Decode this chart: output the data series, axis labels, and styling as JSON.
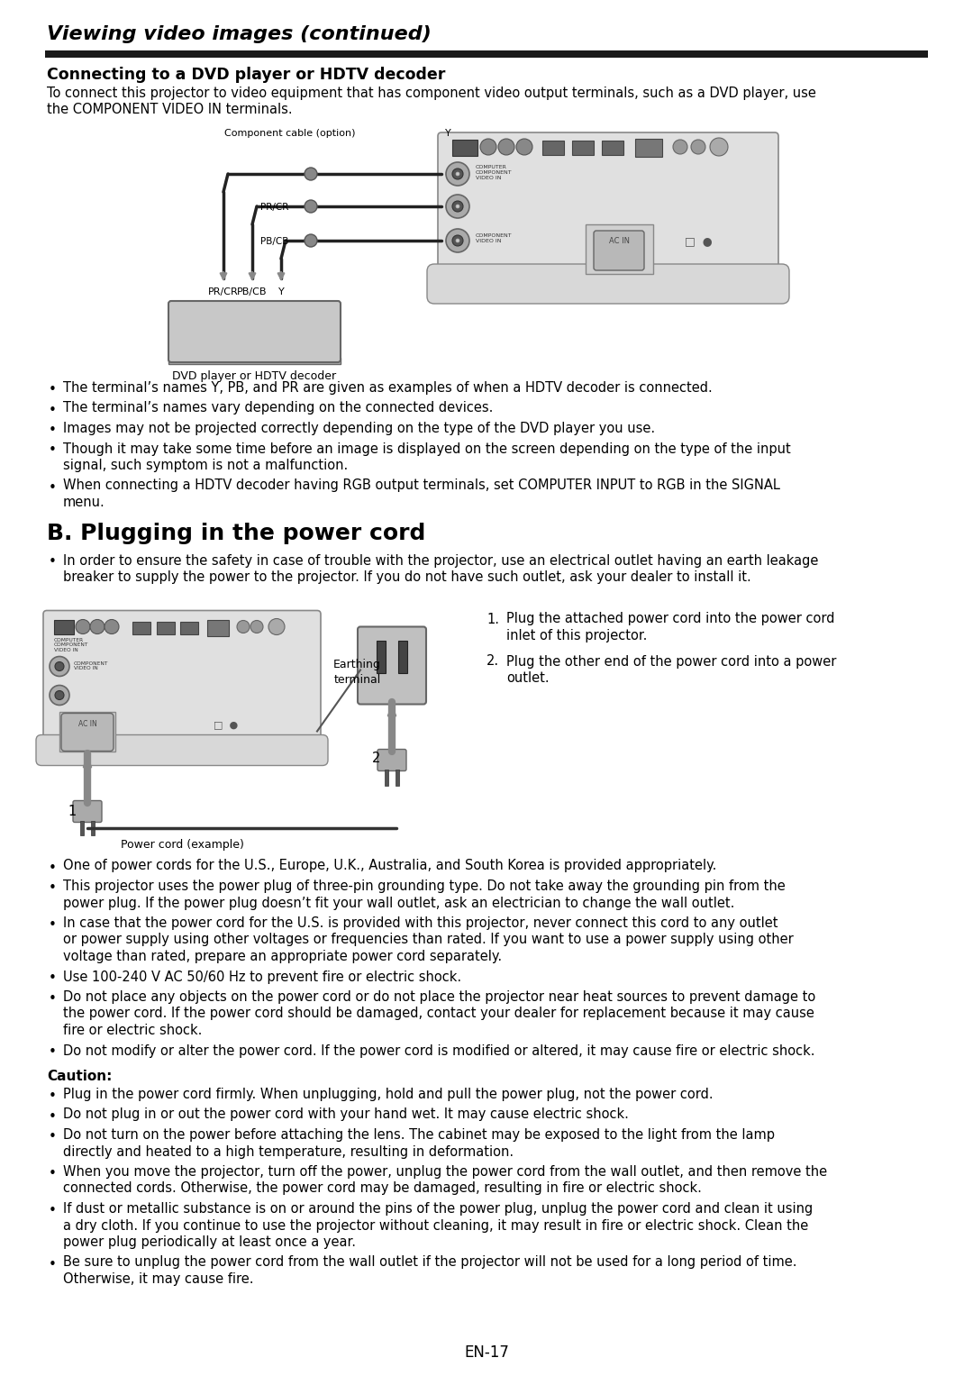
{
  "title": "Viewing video images (continued)",
  "s1_title": "Connecting to a DVD player or HDTV decoder",
  "s1_intro1": "To connect this projector to video equipment that has component video output terminals, such as a DVD player, use",
  "s1_intro2": "the COMPONENT VIDEO IN terminals.",
  "comp_cable_label": "Component cable (option)",
  "label_Y_top": "Y",
  "label_PR": "PR/CR",
  "label_PB": "PB/CB",
  "label_PRcR_side": "PR/CR",
  "label_PBcB_side": "PB/CB",
  "label_PR_bot": "PR/CR",
  "label_PB_bot": "PB/CB",
  "label_Y_bot": "Y",
  "dvd_device_label": "DVD player or HDTV decoder",
  "bullet1": "The terminal’s names Y, PB, and PR are given as examples of when a HDTV decoder is connected.",
  "bullet2": "The terminal’s names vary depending on the connected devices.",
  "bullet3": "Images may not be projected correctly depending on the type of the DVD player you use.",
  "bullet4a": "Though it may take some time before an image is displayed on the screen depending on the type of the input",
  "bullet4b": "signal, such symptom is not a malfunction.",
  "bullet5a": "When connecting a HDTV decoder having RGB output terminals, set COMPUTER INPUT to RGB in the SIGNAL",
  "bullet5b": "menu.",
  "s2_title": "B. Plugging in the power cord",
  "s2_bullet1a": "In order to ensure the safety in case of trouble with the projector, use an electrical outlet having an earth leakage",
  "s2_bullet1b": "breaker to supply the power to the projector. If you do not have such outlet, ask your dealer to install it.",
  "earthing_label1": "Earthing",
  "earthing_label2": "terminal",
  "step1_num": "1.",
  "step1a": "Plug the attached power cord into the power cord",
  "step1b": "inlet of this projector.",
  "step2_num": "2.",
  "step2a": "Plug the other end of the power cord into a power",
  "step2b": "outlet.",
  "power_cord_label": "Power cord (example)",
  "pb1": "One of power cords for the U.S., Europe, U.K., Australia, and South Korea is provided appropriately.",
  "pb2a": "This projector uses the power plug of three-pin grounding type. Do not take away the grounding pin from the",
  "pb2b": "power plug. If the power plug doesn’t fit your wall outlet, ask an electrician to change the wall outlet.",
  "pb3a": "In case that the power cord for the U.S. is provided with this projector, never connect this cord to any outlet",
  "pb3b": "or power supply using other voltages or frequencies than rated. If you want to use a power supply using other",
  "pb3c": "voltage than rated, prepare an appropriate power cord separately.",
  "pb4": "Use 100-240 V AC 50/60 Hz to prevent fire or electric shock.",
  "pb5a": "Do not place any objects on the power cord or do not place the projector near heat sources to prevent damage to",
  "pb5b": "the power cord. If the power cord should be damaged, contact your dealer for replacement because it may cause",
  "pb5c": "fire or electric shock.",
  "pb6": "Do not modify or alter the power cord. If the power cord is modified or altered, it may cause fire or electric shock.",
  "caution_hdr": "Caution:",
  "cb1": "Plug in the power cord firmly. When unplugging, hold and pull the power plug, not the power cord.",
  "cb2": "Do not plug in or out the power cord with your hand wet. It may cause electric shock.",
  "cb3a": "Do not turn on the power before attaching the lens. The cabinet may be exposed to the light from the lamp",
  "cb3b": "directly and heated to a high temperature, resulting in deformation.",
  "cb4a": "When you move the projector, turn off the power, unplug the power cord from the wall outlet, and then remove the",
  "cb4b": "connected cords. Otherwise, the power cord may be damaged, resulting in fire or electric shock.",
  "cb5a": "If dust or metallic substance is on or around the pins of the power plug, unplug the power cord and clean it using",
  "cb5b": "a dry cloth. If you continue to use the projector without cleaning, it may result in fire or electric shock. Clean the",
  "cb5c": "power plug periodically at least once a year.",
  "cb6a": "Be sure to unplug the power cord from the wall outlet if the projector will not be used for a long period of time.",
  "cb6b": "Otherwise, it may cause fire.",
  "page_num": "EN-17",
  "white": "#ffffff",
  "black": "#000000",
  "darkbar": "#1a1a1a",
  "gray_light": "#d0d0d0",
  "gray_mid": "#a0a0a0",
  "gray_dark": "#606060"
}
